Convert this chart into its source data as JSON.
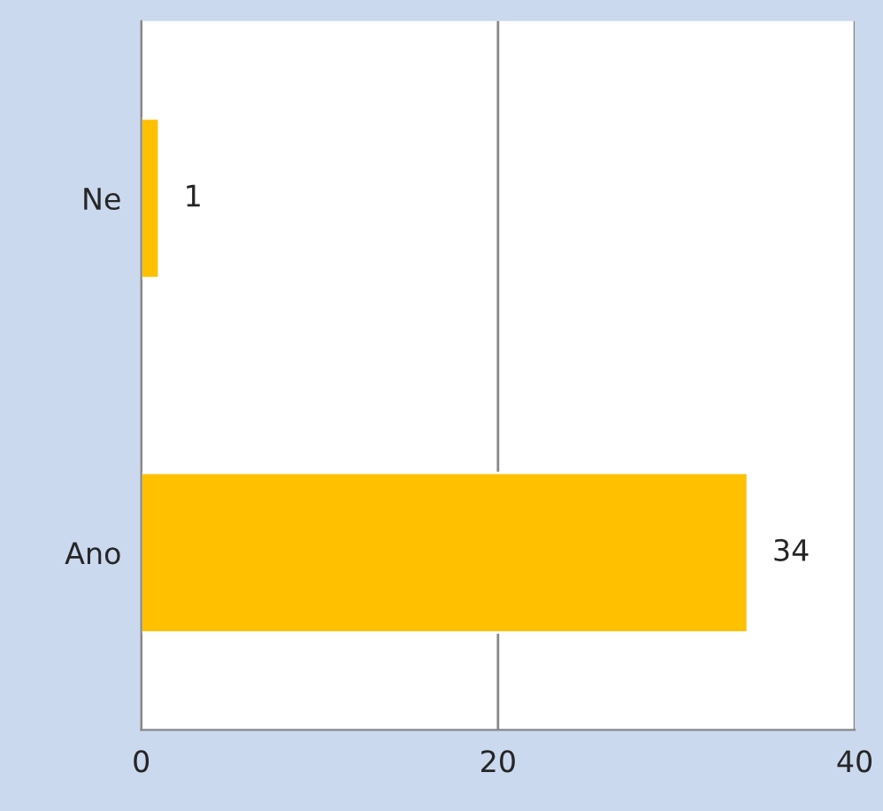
{
  "chart_data": {
    "type": "bar",
    "orientation": "horizontal",
    "categories": [
      "Ne",
      "Ano"
    ],
    "values": [
      1,
      34
    ],
    "color": "#ffc000",
    "xlim": [
      0,
      40
    ],
    "xticks": [
      0,
      20,
      40
    ],
    "grid": "x",
    "data_labels": true
  }
}
